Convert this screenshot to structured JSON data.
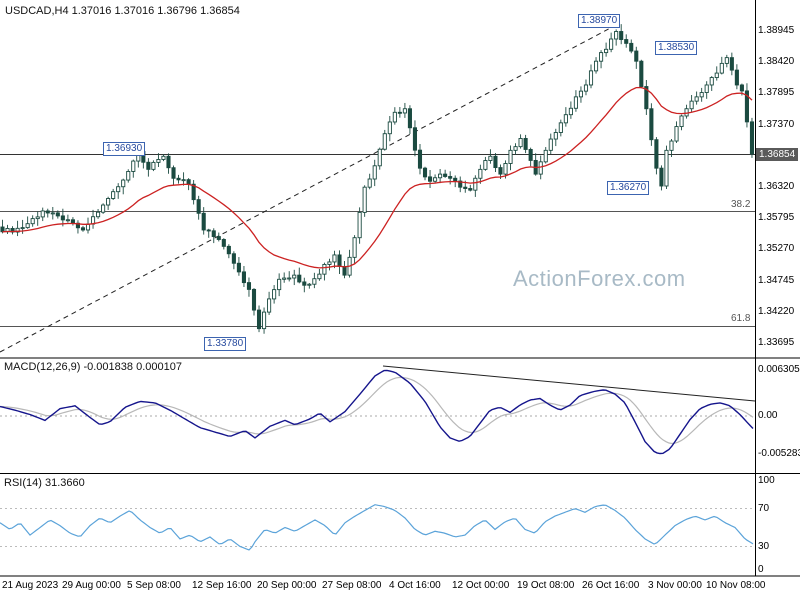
{
  "header": {
    "title": "USDCAD,H4 1.37016 1.37016 1.36796 1.36854"
  },
  "watermark": {
    "text": "ActionForex.com",
    "color": "#a8bac6"
  },
  "main_chart": {
    "y_ticks": [
      "1.38945",
      "1.38420",
      "1.37895",
      "1.37370",
      "1.36320",
      "1.35795",
      "1.35270",
      "1.34745",
      "1.34220",
      "1.33695"
    ],
    "current_price_tick": "1.36854",
    "fib_labels": [
      "38.2",
      "61.8"
    ]
  },
  "macd_panel": {
    "label": "MACD(12,26,9) -0.001838 0.000107",
    "y_ticks": [
      "0.006305",
      "0.00",
      "-0.005283"
    ]
  },
  "rsi_panel": {
    "label": "RSI(14) 31.3660",
    "y_ticks": [
      "100",
      "70",
      "30",
      "0"
    ]
  },
  "x_axis": {
    "labels": [
      "21 Aug 2023",
      "29 Aug 00:00",
      "5 Sep 08:00",
      "12 Sep 16:00",
      "20 Sep 00:00",
      "27 Sep 08:00",
      "4 Oct 16:00",
      "12 Oct 00:00",
      "19 Oct 08:00",
      "26 Oct 16:00",
      "3 Nov 00:00",
      "10 Nov 08:00"
    ],
    "lefts": [
      2,
      62,
      127,
      192,
      257,
      322,
      389,
      452,
      517,
      582,
      648,
      706
    ]
  },
  "chart_data": [
    {
      "type": "candlestick",
      "title": "USDCAD,H4",
      "ohlc_current": {
        "open": 1.37016,
        "high": 1.37016,
        "low": 1.36796,
        "close": 1.36854
      },
      "ylim": [
        1.3344,
        1.3922
      ],
      "y_ticks": [
        1.38945,
        1.3842,
        1.37895,
        1.3737,
        1.36854,
        1.3632,
        1.35795,
        1.3527,
        1.34745,
        1.3422,
        1.33695
      ],
      "n_candles": 150,
      "color": "#1b4a40",
      "ma_color": "#cc2222",
      "close_waypoints": [
        [
          0,
          1.3555
        ],
        [
          4,
          1.3562
        ],
        [
          8,
          1.359
        ],
        [
          12,
          1.3575
        ],
        [
          16,
          1.3558
        ],
        [
          20,
          1.36
        ],
        [
          24,
          1.3642
        ],
        [
          27,
          1.369
        ],
        [
          29,
          1.366
        ],
        [
          32,
          1.3682
        ],
        [
          34,
          1.3645
        ],
        [
          37,
          1.3635
        ],
        [
          40,
          1.3558
        ],
        [
          43,
          1.3542
        ],
        [
          46,
          1.3502
        ],
        [
          49,
          1.3458
        ],
        [
          51,
          1.3392
        ],
        [
          53,
          1.3442
        ],
        [
          55,
          1.3475
        ],
        [
          58,
          1.3482
        ],
        [
          60,
          1.3465
        ],
        [
          62,
          1.3476
        ],
        [
          64,
          1.35
        ],
        [
          66,
          1.3516
        ],
        [
          68,
          1.3482
        ],
        [
          70,
          1.3545
        ],
        [
          72,
          1.363
        ],
        [
          74,
          1.3666
        ],
        [
          76,
          1.372
        ],
        [
          78,
          1.3756
        ],
        [
          80,
          1.3762
        ],
        [
          81,
          1.373
        ],
        [
          83,
          1.3662
        ],
        [
          85,
          1.364
        ],
        [
          87,
          1.3652
        ],
        [
          89,
          1.3645
        ],
        [
          91,
          1.363
        ],
        [
          93,
          1.3625
        ],
        [
          95,
          1.366
        ],
        [
          97,
          1.3682
        ],
        [
          99,
          1.3652
        ],
        [
          101,
          1.3692
        ],
        [
          103,
          1.3712
        ],
        [
          105,
          1.3675
        ],
        [
          106,
          1.3652
        ],
        [
          108,
          1.3692
        ],
        [
          110,
          1.3722
        ],
        [
          112,
          1.3752
        ],
        [
          114,
          1.3782
        ],
        [
          116,
          1.3802
        ],
        [
          118,
          1.3842
        ],
        [
          120,
          1.3862
        ],
        [
          122,
          1.3892
        ],
        [
          124,
          1.3872
        ],
        [
          126,
          1.3842
        ],
        [
          128,
          1.3762
        ],
        [
          130,
          1.3662
        ],
        [
          131,
          1.3632
        ],
        [
          132,
          1.3692
        ],
        [
          134,
          1.3732
        ],
        [
          136,
          1.3762
        ],
        [
          138,
          1.3782
        ],
        [
          140,
          1.3802
        ],
        [
          142,
          1.3822
        ],
        [
          144,
          1.3848
        ],
        [
          146,
          1.3802
        ],
        [
          147,
          1.3792
        ],
        [
          149,
          1.3686
        ]
      ],
      "levels": {
        "current_price": 1.36854,
        "fib_382": 1.3589,
        "fib_618": 1.3396
      },
      "annotations": [
        {
          "text": "1.38970",
          "price": 1.3897
        },
        {
          "text": "1.38530",
          "price": 1.3853
        },
        {
          "text": "1.36930",
          "price": 1.3693
        },
        {
          "text": "1.36270",
          "price": 1.3627
        },
        {
          "text": "1.33780",
          "price": 1.3378
        }
      ],
      "trendline": {
        "x1": 0,
        "y1": 352,
        "x2": 618,
        "y2": 24,
        "style": "dashed"
      }
    },
    {
      "type": "line",
      "name": "MACD(12,26,9)",
      "macd_value": -0.001838,
      "signal_value": 0.000107,
      "ylim": [
        -0.0078,
        0.0079
      ],
      "y_ticks": [
        0.006305,
        0.0,
        -0.005283
      ],
      "color": "#15158c",
      "signal_color": "#b8b8b8",
      "points": [
        [
          0,
          0.0013
        ],
        [
          15,
          0.0008
        ],
        [
          30,
          0.0002
        ],
        [
          45,
          -0.0006
        ],
        [
          60,
          0.001
        ],
        [
          75,
          0.0014
        ],
        [
          90,
          -0.0002
        ],
        [
          100,
          -0.0012
        ],
        [
          110,
          -0.0008
        ],
        [
          125,
          0.0012
        ],
        [
          140,
          0.002
        ],
        [
          155,
          0.0018
        ],
        [
          170,
          0.0008
        ],
        [
          185,
          -0.0004
        ],
        [
          200,
          -0.0016
        ],
        [
          215,
          -0.0022
        ],
        [
          230,
          -0.0028
        ],
        [
          245,
          -0.002
        ],
        [
          255,
          -0.003
        ],
        [
          270,
          -0.0014
        ],
        [
          285,
          -0.0006
        ],
        [
          295,
          -0.0012
        ],
        [
          310,
          -0.0004
        ],
        [
          320,
          0.0004
        ],
        [
          330,
          -0.0008
        ],
        [
          345,
          0.0006
        ],
        [
          360,
          0.003
        ],
        [
          375,
          0.0055
        ],
        [
          385,
          0.0063
        ],
        [
          395,
          0.006
        ],
        [
          410,
          0.0045
        ],
        [
          425,
          0.002
        ],
        [
          440,
          -0.0015
        ],
        [
          450,
          -0.003
        ],
        [
          460,
          -0.0035
        ],
        [
          470,
          -0.0028
        ],
        [
          480,
          -0.001
        ],
        [
          490,
          0.0008
        ],
        [
          500,
          0.0012
        ],
        [
          510,
          0.0005
        ],
        [
          520,
          0.0015
        ],
        [
          530,
          0.0022
        ],
        [
          540,
          0.0024
        ],
        [
          550,
          0.0015
        ],
        [
          560,
          0.0008
        ],
        [
          570,
          0.0015
        ],
        [
          580,
          0.0028
        ],
        [
          595,
          0.0034
        ],
        [
          605,
          0.0036
        ],
        [
          615,
          0.003
        ],
        [
          625,
          0.0018
        ],
        [
          635,
          -0.0008
        ],
        [
          645,
          -0.0035
        ],
        [
          655,
          -0.005
        ],
        [
          662,
          -0.0052
        ],
        [
          670,
          -0.0045
        ],
        [
          680,
          -0.0025
        ],
        [
          690,
          -0.0005
        ],
        [
          700,
          0.001
        ],
        [
          710,
          0.0016
        ],
        [
          720,
          0.0018
        ],
        [
          730,
          0.0014
        ],
        [
          740,
          0.0002
        ],
        [
          748,
          -0.001
        ],
        [
          755,
          -0.002
        ]
      ],
      "trendline": {
        "x1": 383,
        "y1": 366,
        "x2": 755,
        "y2": 401,
        "style": "solid"
      }
    },
    {
      "type": "line",
      "name": "RSI(14)",
      "current": 31.366,
      "ylim": [
        0,
        100
      ],
      "y_ticks": [
        100,
        70,
        30,
        0
      ],
      "levels": [
        70,
        30
      ],
      "color": "#5ba3d9",
      "points": [
        [
          0,
          55
        ],
        [
          10,
          48
        ],
        [
          20,
          55
        ],
        [
          30,
          42
        ],
        [
          40,
          50
        ],
        [
          50,
          58
        ],
        [
          60,
          52
        ],
        [
          70,
          44
        ],
        [
          80,
          40
        ],
        [
          90,
          52
        ],
        [
          100,
          60
        ],
        [
          110,
          55
        ],
        [
          120,
          62
        ],
        [
          130,
          68
        ],
        [
          140,
          58
        ],
        [
          150,
          50
        ],
        [
          160,
          44
        ],
        [
          170,
          50
        ],
        [
          180,
          38
        ],
        [
          190,
          42
        ],
        [
          200,
          35
        ],
        [
          210,
          40
        ],
        [
          220,
          32
        ],
        [
          230,
          38
        ],
        [
          240,
          30
        ],
        [
          250,
          26
        ],
        [
          255,
          35
        ],
        [
          265,
          48
        ],
        [
          275,
          44
        ],
        [
          285,
          50
        ],
        [
          295,
          46
        ],
        [
          305,
          52
        ],
        [
          315,
          58
        ],
        [
          325,
          52
        ],
        [
          335,
          42
        ],
        [
          345,
          55
        ],
        [
          355,
          62
        ],
        [
          365,
          68
        ],
        [
          375,
          74
        ],
        [
          385,
          72
        ],
        [
          395,
          68
        ],
        [
          405,
          60
        ],
        [
          415,
          48
        ],
        [
          425,
          42
        ],
        [
          435,
          46
        ],
        [
          445,
          44
        ],
        [
          455,
          40
        ],
        [
          465,
          42
        ],
        [
          475,
          52
        ],
        [
          485,
          58
        ],
        [
          495,
          48
        ],
        [
          505,
          56
        ],
        [
          515,
          60
        ],
        [
          525,
          48
        ],
        [
          535,
          44
        ],
        [
          545,
          56
        ],
        [
          555,
          62
        ],
        [
          565,
          66
        ],
        [
          575,
          70
        ],
        [
          585,
          66
        ],
        [
          595,
          72
        ],
        [
          605,
          74
        ],
        [
          615,
          68
        ],
        [
          625,
          60
        ],
        [
          635,
          48
        ],
        [
          645,
          38
        ],
        [
          655,
          32
        ],
        [
          665,
          42
        ],
        [
          675,
          52
        ],
        [
          685,
          58
        ],
        [
          695,
          62
        ],
        [
          705,
          58
        ],
        [
          715,
          62
        ],
        [
          725,
          55
        ],
        [
          735,
          50
        ],
        [
          745,
          38
        ],
        [
          755,
          31.4
        ]
      ]
    }
  ]
}
